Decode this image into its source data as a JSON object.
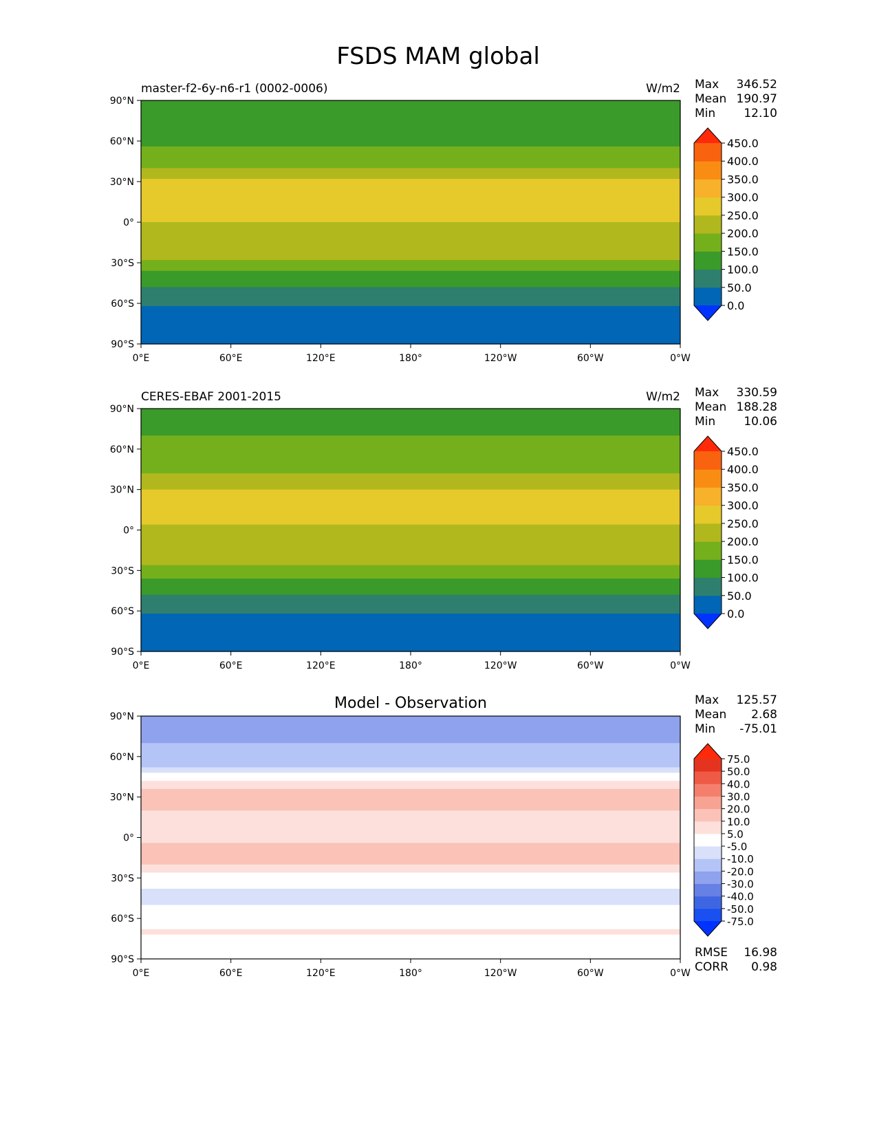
{
  "figure": {
    "title": "FSDS MAM global"
  },
  "chart_data": [
    {
      "type": "heatmap",
      "id": "model",
      "left_title": "master-f2-6y-n6-r1 (0002-0006)",
      "center_title": "",
      "units": "W/m2",
      "stats": [
        {
          "label": "Max",
          "value": "346.52"
        },
        {
          "label": "Mean",
          "value": "190.97"
        },
        {
          "label": "Min",
          "value": "12.10"
        }
      ],
      "colorbar": {
        "levels": [
          "0.0",
          "50.0",
          "100.0",
          "150.0",
          "200.0",
          "250.0",
          "300.0",
          "350.0",
          "400.0",
          "450.0"
        ],
        "colors": [
          "#0033ff",
          "#0066b5",
          "#2e7f6e",
          "#3a9a2a",
          "#74b01c",
          "#b0b81e",
          "#e6c92a",
          "#f7b12b",
          "#f98d14",
          "#f9620f",
          "#ff2a0a"
        ]
      },
      "xticks": [
        "0°E",
        "60°E",
        "120°E",
        "180°",
        "120°W",
        "60°W",
        "0°W"
      ],
      "yticks": [
        "90°N",
        "60°N",
        "30°N",
        "0°",
        "30°S",
        "60°S",
        "90°S"
      ],
      "lat_profile": {
        "lat": [
          90,
          80,
          70,
          60,
          50,
          40,
          30,
          20,
          10,
          0,
          -10,
          -20,
          -30,
          -40,
          -50,
          -60,
          -70,
          -80,
          -90
        ],
        "value": [
          105,
          110,
          130,
          145,
          160,
          200,
          260,
          280,
          265,
          250,
          240,
          225,
          190,
          130,
          95,
          55,
          30,
          20,
          15
        ]
      }
    },
    {
      "type": "heatmap",
      "id": "obs",
      "left_title": "CERES-EBAF 2001-2015",
      "center_title": "",
      "units": "W/m2",
      "stats": [
        {
          "label": "Max",
          "value": "330.59"
        },
        {
          "label": "Mean",
          "value": "188.28"
        },
        {
          "label": "Min",
          "value": "10.06"
        }
      ],
      "colorbar": {
        "levels": [
          "0.0",
          "50.0",
          "100.0",
          "150.0",
          "200.0",
          "250.0",
          "300.0",
          "350.0",
          "400.0",
          "450.0"
        ],
        "colors": [
          "#0033ff",
          "#0066b5",
          "#2e7f6e",
          "#3a9a2a",
          "#74b01c",
          "#b0b81e",
          "#e6c92a",
          "#f7b12b",
          "#f98d14",
          "#f9620f",
          "#ff2a0a"
        ]
      },
      "xticks": [
        "0°E",
        "60°E",
        "120°E",
        "180°",
        "120°W",
        "60°W",
        "0°W"
      ],
      "yticks": [
        "90°N",
        "60°N",
        "30°N",
        "0°",
        "30°S",
        "60°S",
        "90°S"
      ],
      "lat_profile": {
        "lat": [
          90,
          80,
          70,
          60,
          50,
          40,
          30,
          20,
          10,
          0,
          -10,
          -20,
          -30,
          -40,
          -50,
          -60,
          -70,
          -80,
          -90
        ],
        "value": [
          135,
          140,
          150,
          160,
          180,
          205,
          250,
          265,
          255,
          245,
          235,
          215,
          185,
          125,
          90,
          55,
          30,
          20,
          15
        ]
      }
    },
    {
      "type": "heatmap",
      "id": "diff",
      "left_title": "",
      "center_title": "Model - Observation",
      "units": "",
      "stats": [
        {
          "label": "Max",
          "value": "125.57"
        },
        {
          "label": "Mean",
          "value": "2.68"
        },
        {
          "label": "Min",
          "value": "-75.01"
        }
      ],
      "colorbar": {
        "levels": [
          "-75.0",
          "-50.0",
          "-40.0",
          "-30.0",
          "-20.0",
          "-10.0",
          "-5.0",
          "5.0",
          "10.0",
          "20.0",
          "30.0",
          "40.0",
          "50.0",
          "75.0"
        ],
        "colors": [
          "#0033ff",
          "#1a4ff0",
          "#3f66e2",
          "#6680e6",
          "#8fa2ee",
          "#b4c4f6",
          "#d8e0fa",
          "#ffffff",
          "#fde0db",
          "#fbc2b8",
          "#f8a293",
          "#f47f6c",
          "#ee5a45",
          "#e43420",
          "#ff2a0a"
        ]
      },
      "xticks": [
        "0°E",
        "60°E",
        "120°E",
        "180°",
        "120°W",
        "60°W",
        "0°W"
      ],
      "yticks": [
        "90°N",
        "60°N",
        "30°N",
        "0°",
        "30°S",
        "60°S",
        "90°S"
      ],
      "lat_profile": {
        "lat": [
          90,
          80,
          70,
          60,
          50,
          40,
          30,
          20,
          10,
          0,
          -10,
          -20,
          -30,
          -40,
          -50,
          -60,
          -70,
          -80,
          -90
        ],
        "value": [
          -20,
          -25,
          -20,
          -18,
          -8,
          8,
          12,
          10,
          8,
          8,
          12,
          10,
          2,
          -8,
          -5,
          0,
          6,
          2,
          0
        ]
      },
      "footer_stats": [
        {
          "label": "RMSE",
          "value": "16.98"
        },
        {
          "label": "CORR",
          "value": "0.98"
        }
      ]
    }
  ]
}
